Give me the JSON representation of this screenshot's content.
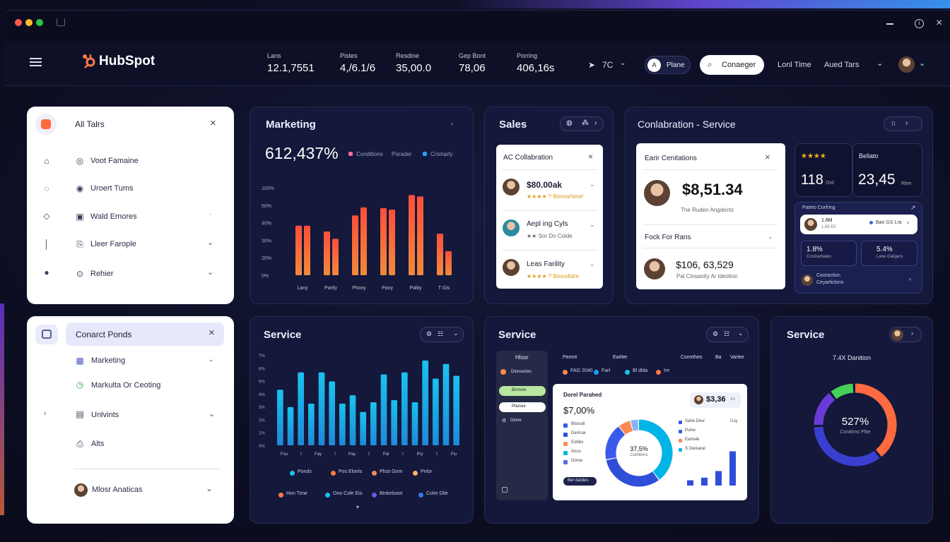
{
  "header": {
    "brand": "HubSpot",
    "stats": [
      {
        "label": "Lans",
        "value": "12.1,7551"
      },
      {
        "label": "Pistes",
        "value": "4,/6.1/6"
      },
      {
        "label": "Resdine",
        "value": "35,00.0"
      },
      {
        "label": "Gep Bont",
        "value": "78,06"
      },
      {
        "label": "Porring",
        "value": "406,16s"
      }
    ],
    "metric": "7C",
    "pill_label": "Plane",
    "search_label": "Conaeger",
    "link1": "Lonl Time",
    "link2": "Aued Tars"
  },
  "sidebar1": {
    "title": "All Talrs",
    "items": [
      {
        "label": "Voot Famaine",
        "icon": "home-icon"
      },
      {
        "label": "Uroert Tums",
        "icon": "chat-icon"
      },
      {
        "label": "Wald Emores",
        "icon": "bulb-icon"
      },
      {
        "label": "Lleer Farople",
        "icon": "book-icon"
      },
      {
        "label": "Rehier",
        "icon": "user-icon"
      }
    ]
  },
  "sidebar2": {
    "title": "Conarct Ponds",
    "items": [
      {
        "label": "Marketing"
      },
      {
        "label": "Markulta Or Ceoting"
      },
      {
        "label": "Unlvints"
      },
      {
        "label": "Alts"
      },
      {
        "label": "Mlosr Anaticas"
      }
    ]
  },
  "marketing": {
    "title": "Marketing",
    "value": "612,437%",
    "legend": [
      "Conditions",
      "Porader",
      "Crisharly"
    ],
    "chart_data": {
      "type": "bar",
      "y_ticks": [
        "0%",
        "20%",
        "30%",
        "40%",
        "50%",
        "100%"
      ],
      "categories": [
        "Lany",
        "Partly",
        "Phony",
        "Pany",
        "Pality",
        "T Gis"
      ],
      "series": [
        {
          "values": [
            68,
            60,
            82,
            92,
            110,
            57
          ]
        },
        {
          "values": [
            68,
            50,
            93,
            90,
            108,
            33
          ]
        }
      ],
      "ylim": [
        0,
        120
      ]
    }
  },
  "sales": {
    "title": "Sales",
    "card_title": "AC Collabration",
    "rows": [
      {
        "name": "$80.00ak",
        "sub": "★★★★ ? Bonnahtinel"
      },
      {
        "name": "Aepl ing Cyls",
        "sub": "★★ Sor Dn Colde"
      },
      {
        "name": "Leas Farility",
        "sub": "★★★★ ? Bosodtdre"
      }
    ]
  },
  "collab": {
    "title": "Conlabration - Service",
    "card_title": "Earir Cenitations",
    "big_value": "$8,51.34",
    "big_sub": "The Ruden Angdects",
    "sec_title": "Fock For Rans",
    "sec_value": "$106, 63,529",
    "sec_sub": "Pal Cinsanity Ar ldeotion",
    "rating_stars": "★★★★",
    "rating_value": "118",
    "rating_unit": "Ord",
    "ratio_label": "Bellato",
    "ratio_value": "23,45",
    "ratio_unit": "Rlee",
    "mini_title": "Patelo Corfring",
    "pill_value": "1.8M",
    "pill_sub": "1.89 Ell",
    "pill_right": "Bao GS Lra",
    "s1_value": "1.8%",
    "s1_sub": "Cocinarbales",
    "s2_value": "5.4%",
    "s2_sub": "Lane Galigers",
    "footer": "Cooraction Ceyarticlons"
  },
  "service1": {
    "title": "Service",
    "y_ticks": [
      "0%",
      "1%",
      "2%",
      "3%",
      "4%",
      "5%",
      "6%",
      "7%"
    ],
    "x_ticks": [
      "Fou",
      "I",
      "Fay",
      "I",
      "Pay",
      "I",
      "Pal",
      "I",
      "Pry",
      "I",
      "Fiu"
    ],
    "legend1": [
      "Ponds",
      "Pos Elonls",
      "Plsst Gom",
      "Pnlor"
    ],
    "legend2": [
      "Hon Time",
      "Ono Cole Eio",
      "Binkelsoot",
      "Colre Dlie"
    ],
    "chart_data": {
      "type": "bar",
      "values": [
        80,
        55,
        105,
        60,
        105,
        92,
        60,
        72,
        48,
        62,
        102,
        65,
        105,
        62,
        122,
        96,
        117,
        100
      ],
      "ylim": [
        0,
        130
      ]
    }
  },
  "service2": {
    "title": "Service",
    "side_title": "Hlosr",
    "side_items": [
      "Dlonserlon",
      "Birmom",
      "Plansie",
      "Dlorie"
    ],
    "cols": [
      "Pemnt",
      "Earlter",
      "Comrthes",
      "Ba",
      "Varlee"
    ],
    "legend": [
      "FAG 2040",
      "Farl",
      "Bl dlda",
      "Ire"
    ],
    "inner_title": "Dorel Parahed",
    "inner_value": "$7,00%",
    "chip_value": "$3,36",
    "chip_unit": "ks",
    "donut_label": "37,5%",
    "donut_sub": "Conitinns",
    "inner_legend": [
      "Blossdi",
      "Derirsai",
      "Eobbo",
      "Ancu",
      "Dorse"
    ],
    "mini_legend": [
      "Sahe Dew",
      "Pulse",
      "Eamele",
      "S Dwisaral"
    ],
    "mini_value": "Day",
    "tag": "Ber dardes",
    "chart_data": {
      "type": "pie",
      "values": [
        40,
        32,
        18,
        6,
        4
      ],
      "colors": [
        "#00b4e6",
        "#2f4fd8",
        "#3a5bea",
        "#ff8a50",
        "#8ab4f0"
      ]
    },
    "mini_chart": {
      "type": "bar",
      "values": [
        8,
        12,
        22,
        52
      ],
      "ylim": [
        0,
        60
      ]
    }
  },
  "service3": {
    "title": "Service",
    "label": "7.4X Danition",
    "value": "527%",
    "sub": "Conitirns Pltie",
    "chart_data": {
      "type": "pie",
      "values": [
        40,
        35,
        15,
        10
      ],
      "colors": [
        "#ff6a40",
        "#3a3fd0",
        "#6a3bd8",
        "#45d05a"
      ]
    }
  },
  "colors": {
    "accent": "#ff7a45",
    "blue": "#1fb4ea",
    "bg": "#0d0f24"
  }
}
